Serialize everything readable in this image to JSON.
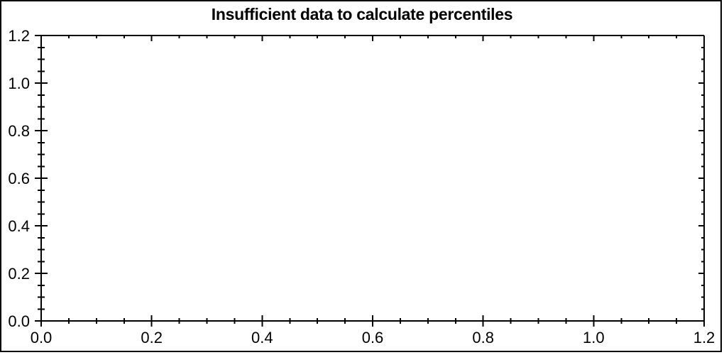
{
  "window": {
    "background_color": "#ffffff",
    "border_color": "#000000"
  },
  "chart_data": {
    "type": "scatter",
    "title": "Insufficient data to calculate percentiles",
    "series": [],
    "x_tick_labels": [
      "0.0",
      "0.2",
      "0.4",
      "0.6",
      "0.8",
      "1.0",
      "1.2"
    ],
    "y_tick_labels": [
      "0.0",
      "0.2",
      "0.4",
      "0.6",
      "0.8",
      "1.0",
      "1.2"
    ],
    "x_tick_values": [
      0,
      0.2,
      0.4,
      0.6,
      0.8,
      1.0,
      1.2
    ],
    "y_tick_values": [
      0,
      0.2,
      0.4,
      0.6,
      0.8,
      1.0,
      1.2
    ],
    "xlim": [
      0,
      1.2
    ],
    "ylim": [
      0,
      1.2
    ],
    "minor_ticks_between_majors": 3,
    "grid": false,
    "legend": null,
    "xlabel": "",
    "ylabel": "",
    "axis_color": "#000000",
    "text_color": "#000000"
  }
}
